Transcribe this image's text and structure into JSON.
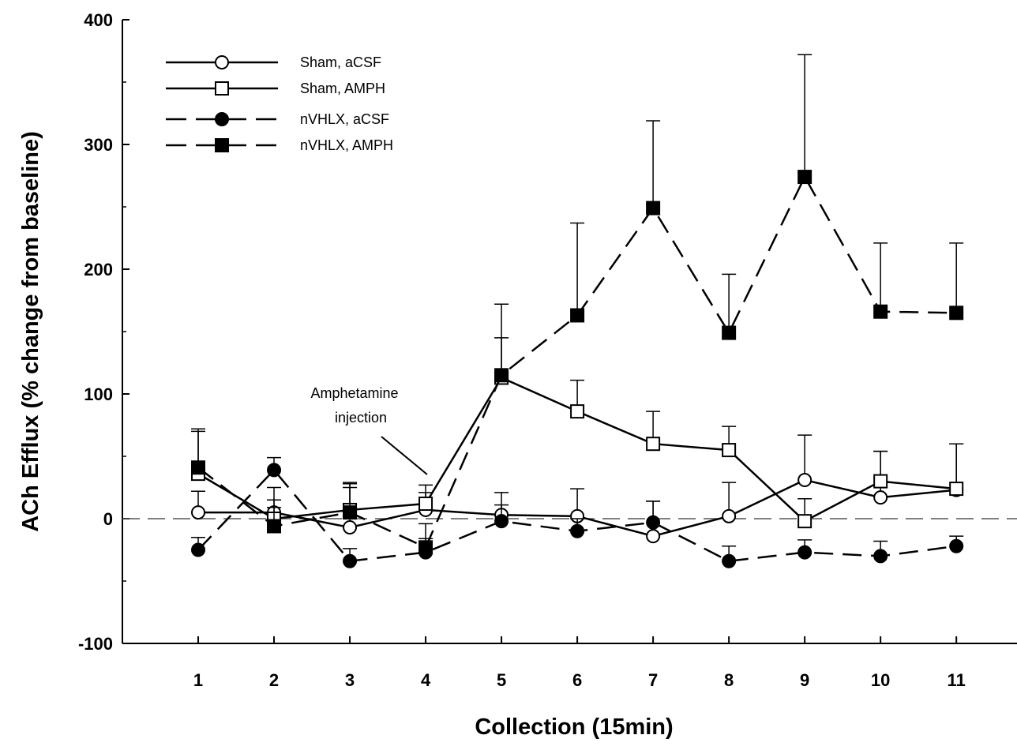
{
  "chart_data": {
    "type": "line",
    "xlabel": "Collection (15min)",
    "ylabel": "ACh Efflux (% change from baseline)",
    "ylim": [
      -100,
      400
    ],
    "xlim": [
      0,
      11.8
    ],
    "yticks": [
      -100,
      0,
      100,
      200,
      300,
      400
    ],
    "x": [
      1,
      2,
      3,
      4,
      5,
      6,
      7,
      8,
      9,
      10,
      11
    ],
    "reference_line": 0,
    "grid": false,
    "legend_position": "top-left",
    "annotation": {
      "lines": [
        "Amphetamine",
        "injection"
      ],
      "points_to_x": 4
    },
    "series": [
      {
        "name": "Sham, aCSF",
        "marker": "circle",
        "filled": false,
        "dashed": false,
        "values": [
          5,
          5,
          -7,
          7,
          3,
          2,
          -14,
          2,
          31,
          17,
          23
        ],
        "errors": [
          17,
          10,
          35,
          14,
          18,
          22,
          28,
          27,
          36,
          37,
          37
        ]
      },
      {
        "name": "Sham, AMPH",
        "marker": "square",
        "filled": false,
        "dashed": false,
        "values": [
          36,
          0,
          7,
          12,
          113,
          86,
          60,
          55,
          -2,
          30,
          24
        ],
        "errors": [
          34,
          25,
          22,
          15,
          32,
          25,
          26,
          19,
          18,
          24,
          36
        ]
      },
      {
        "name": "nVHLX, aCSF",
        "marker": "circle",
        "filled": true,
        "dashed": true,
        "values": [
          -25,
          39,
          -34,
          -27,
          -2,
          -10,
          -3,
          -34,
          -27,
          -30,
          -22
        ],
        "errors": [
          10,
          10,
          10,
          11,
          13,
          10,
          17,
          12,
          10,
          12,
          8
        ]
      },
      {
        "name": "nVHLX, AMPH",
        "marker": "square",
        "filled": true,
        "dashed": true,
        "values": [
          41,
          -6,
          5,
          -23,
          115,
          163,
          249,
          149,
          274,
          166,
          165
        ],
        "errors": [
          31,
          15,
          20,
          19,
          57,
          74,
          70,
          47,
          98,
          55,
          56
        ]
      }
    ]
  }
}
